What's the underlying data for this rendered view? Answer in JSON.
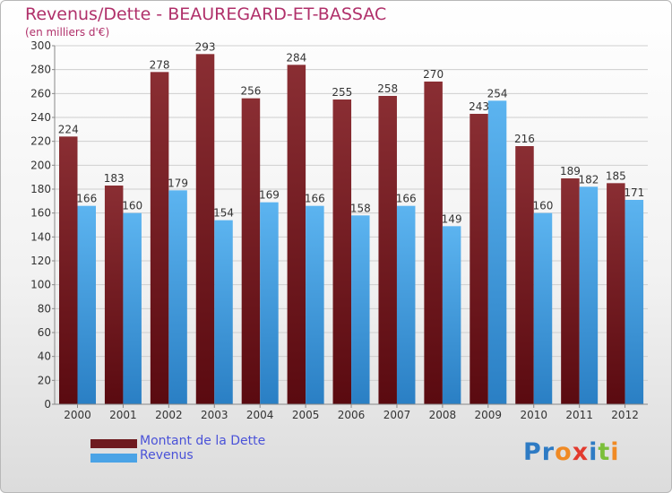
{
  "header": {
    "title": "Revenus/Dette - BEAUREGARD-ET-BASSAC",
    "subtitle": "(en milliers d'€)"
  },
  "legend": {
    "items": [
      {
        "label": "Montant de la Dette",
        "color": "#6e1a1f"
      },
      {
        "label": "Revenus",
        "color": "#4aa3e6"
      }
    ]
  },
  "logo": {
    "text": "Proxiti",
    "letters": [
      {
        "char": "P",
        "color": "#2e7bc4"
      },
      {
        "char": "r",
        "color": "#2e7bc4"
      },
      {
        "char": "o",
        "color": "#f08a24"
      },
      {
        "char": "x",
        "color": "#e23a2e"
      },
      {
        "char": "i",
        "color": "#2e7bc4"
      },
      {
        "char": "t",
        "color": "#7bbf3a"
      },
      {
        "char": "i",
        "color": "#f08a24"
      }
    ]
  },
  "chart_data": {
    "type": "bar",
    "title": "Revenus/Dette - BEAUREGARD-ET-BASSAC",
    "subtitle": "(en milliers d'€)",
    "categories": [
      "2000",
      "2001",
      "2002",
      "2003",
      "2004",
      "2005",
      "2006",
      "2007",
      "2008",
      "2009",
      "2010",
      "2011",
      "2012"
    ],
    "series": [
      {
        "name": "Montant de la Dette",
        "color": "#6e1a1f",
        "values": [
          224,
          183,
          278,
          293,
          256,
          284,
          255,
          258,
          270,
          243,
          216,
          189,
          185
        ]
      },
      {
        "name": "Revenus",
        "color": "#4aa3e6",
        "values": [
          166,
          160,
          179,
          154,
          169,
          166,
          158,
          166,
          149,
          254,
          160,
          182,
          171
        ]
      }
    ],
    "ylim": [
      0,
      300
    ],
    "yticks": [
      0,
      20,
      40,
      60,
      80,
      100,
      120,
      140,
      160,
      180,
      200,
      220,
      240,
      260,
      280,
      300
    ],
    "grid": true,
    "legend_position": "bottom-left"
  }
}
